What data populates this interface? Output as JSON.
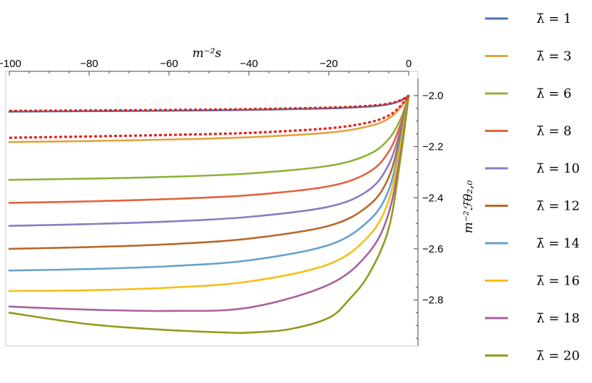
{
  "chart_data": {
    "type": "line",
    "title": "",
    "xlabel": "m⁻²s",
    "ylabel": "m⁻²ℱθ₂,₀",
    "xlim": [
      -100,
      0
    ],
    "ylim": [
      -2.98,
      -1.905
    ],
    "x_ticks": [
      -100,
      -80,
      -60,
      -40,
      -20,
      0
    ],
    "y_ticks": [
      -2.0,
      -2.2,
      -2.4,
      -2.6,
      -2.8
    ],
    "x_tick_labels": [
      "−100",
      "−80",
      "−60",
      "−40",
      "−20",
      "0"
    ],
    "y_tick_labels": [
      "−2.0",
      "−2.2",
      "−2.4",
      "−2.6",
      "−2.8"
    ],
    "x_axis_position": "top",
    "y_axis_position": "right",
    "grid": false,
    "legend_position": "right",
    "series": [
      {
        "name": "λ̄ = 1",
        "color": "#4a72b0",
        "style": "solid",
        "points": [
          [
            -100,
            -2.063
          ],
          [
            -80,
            -2.061
          ],
          [
            -60,
            -2.059
          ],
          [
            -40,
            -2.056
          ],
          [
            -20,
            -2.05
          ],
          [
            -10,
            -2.043
          ],
          [
            -5,
            -2.034
          ],
          [
            -2,
            -2.02
          ],
          [
            0,
            -2.0
          ]
        ]
      },
      {
        "name": "λ̄ = 3",
        "color": "#e0a33c",
        "style": "solid",
        "points": [
          [
            -100,
            -2.182
          ],
          [
            -80,
            -2.178
          ],
          [
            -60,
            -2.172
          ],
          [
            -40,
            -2.163
          ],
          [
            -20,
            -2.145
          ],
          [
            -10,
            -2.12
          ],
          [
            -5,
            -2.09
          ],
          [
            -2,
            -2.045
          ],
          [
            0,
            -2.0
          ]
        ]
      },
      {
        "name": "λ̄ = 6",
        "color": "#8fb03a",
        "style": "solid",
        "points": [
          [
            -100,
            -2.33
          ],
          [
            -80,
            -2.325
          ],
          [
            -60,
            -2.318
          ],
          [
            -40,
            -2.305
          ],
          [
            -20,
            -2.275
          ],
          [
            -10,
            -2.23
          ],
          [
            -5,
            -2.17
          ],
          [
            -2,
            -2.09
          ],
          [
            0,
            -2.0
          ]
        ]
      },
      {
        "name": "λ̄ = 8",
        "color": "#e2623b",
        "style": "solid",
        "points": [
          [
            -100,
            -2.42
          ],
          [
            -80,
            -2.414
          ],
          [
            -60,
            -2.405
          ],
          [
            -40,
            -2.39
          ],
          [
            -20,
            -2.355
          ],
          [
            -10,
            -2.3
          ],
          [
            -5,
            -2.22
          ],
          [
            -2,
            -2.11
          ],
          [
            0,
            -2.0
          ]
        ]
      },
      {
        "name": "λ̄ = 10",
        "color": "#8a7cbf",
        "style": "solid",
        "points": [
          [
            -100,
            -2.51
          ],
          [
            -80,
            -2.503
          ],
          [
            -60,
            -2.493
          ],
          [
            -40,
            -2.475
          ],
          [
            -20,
            -2.435
          ],
          [
            -10,
            -2.37
          ],
          [
            -5,
            -2.27
          ],
          [
            -2,
            -2.13
          ],
          [
            0,
            -2.0
          ]
        ]
      },
      {
        "name": "λ̄ = 12",
        "color": "#b8682a",
        "style": "solid",
        "points": [
          [
            -100,
            -2.6
          ],
          [
            -80,
            -2.593
          ],
          [
            -60,
            -2.582
          ],
          [
            -40,
            -2.56
          ],
          [
            -20,
            -2.51
          ],
          [
            -10,
            -2.43
          ],
          [
            -5,
            -2.32
          ],
          [
            -2,
            -2.15
          ],
          [
            0,
            -2.0
          ]
        ]
      },
      {
        "name": "λ̄ = 14",
        "color": "#64a2cc",
        "style": "solid",
        "points": [
          [
            -100,
            -2.685
          ],
          [
            -80,
            -2.679
          ],
          [
            -60,
            -2.668
          ],
          [
            -40,
            -2.645
          ],
          [
            -20,
            -2.585
          ],
          [
            -10,
            -2.49
          ],
          [
            -5,
            -2.37
          ],
          [
            -2,
            -2.17
          ],
          [
            0,
            -2.0
          ]
        ]
      },
      {
        "name": "λ̄ = 16",
        "color": "#f6be18",
        "style": "solid",
        "points": [
          [
            -100,
            -2.765
          ],
          [
            -80,
            -2.762
          ],
          [
            -60,
            -2.752
          ],
          [
            -40,
            -2.728
          ],
          [
            -20,
            -2.66
          ],
          [
            -10,
            -2.55
          ],
          [
            -5,
            -2.41
          ],
          [
            -2,
            -2.19
          ],
          [
            0,
            -2.0
          ]
        ]
      },
      {
        "name": "λ̄ = 18",
        "color": "#a9609e",
        "style": "solid",
        "points": [
          [
            -100,
            -2.826
          ],
          [
            -80,
            -2.838
          ],
          [
            -60,
            -2.843
          ],
          [
            -40,
            -2.83
          ],
          [
            -20,
            -2.74
          ],
          [
            -10,
            -2.615
          ],
          [
            -5,
            -2.46
          ],
          [
            -2,
            -2.22
          ],
          [
            0,
            -2.0
          ]
        ]
      },
      {
        "name": "λ̄ = 20",
        "color": "#929a1c",
        "style": "solid",
        "points": [
          [
            -100,
            -2.85
          ],
          [
            -80,
            -2.895
          ],
          [
            -60,
            -2.918
          ],
          [
            -45,
            -2.928
          ],
          [
            -40,
            -2.928
          ],
          [
            -30,
            -2.915
          ],
          [
            -20,
            -2.87
          ],
          [
            -15,
            -2.8
          ],
          [
            -10,
            -2.7
          ],
          [
            -5,
            -2.52
          ],
          [
            -2,
            -2.24
          ],
          [
            0,
            -2.0
          ]
        ]
      },
      {
        "name": "",
        "color": "#e8211d",
        "style": "dotted",
        "points": [
          [
            -100,
            -2.06
          ],
          [
            -80,
            -2.058
          ],
          [
            -60,
            -2.056
          ],
          [
            -40,
            -2.053
          ],
          [
            -20,
            -2.047
          ],
          [
            -10,
            -2.04
          ],
          [
            -5,
            -2.031
          ],
          [
            -2,
            -2.018
          ],
          [
            0,
            -2.0
          ]
        ]
      },
      {
        "name": "",
        "color": "#e8211d",
        "style": "dotted",
        "points": [
          [
            -100,
            -2.165
          ],
          [
            -80,
            -2.16
          ],
          [
            -60,
            -2.154
          ],
          [
            -40,
            -2.146
          ],
          [
            -20,
            -2.128
          ],
          [
            -10,
            -2.105
          ],
          [
            -5,
            -2.078
          ],
          [
            -2,
            -2.04
          ],
          [
            0,
            -2.0
          ]
        ]
      }
    ]
  }
}
